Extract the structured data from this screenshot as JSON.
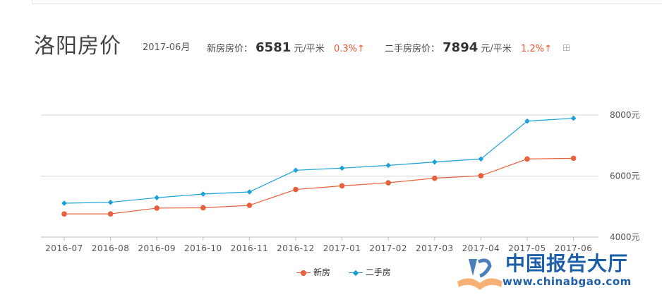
{
  "header": {
    "city_title": "洛阳房价",
    "date": "2017-06月",
    "new_label": "新房房价：",
    "new_price": "6581",
    "new_unit": "元/平米",
    "new_change": "0.3%↑",
    "second_label": "二手房房价：",
    "second_price": "7894",
    "second_unit": "元/平米",
    "second_change": "1.2%↑"
  },
  "legend": {
    "new": "新房",
    "second": "二手房"
  },
  "watermark": {
    "cn": "中国报告大厅",
    "url": "www.chinabgao.com"
  },
  "colors": {
    "new": "#e8603c",
    "second": "#1ba0d8",
    "grid": "#d6d6d6",
    "watermark": "#1e5fa8"
  },
  "chart_data": {
    "type": "line",
    "categories": [
      "2016-07",
      "2016-08",
      "2016-09",
      "2016-10",
      "2016-11",
      "2016-12",
      "2017-01",
      "2017-02",
      "2017-03",
      "2017-04",
      "2017-05",
      "2017-06"
    ],
    "series": [
      {
        "name": "新房",
        "marker": "circle",
        "values": [
          4760,
          4760,
          4950,
          4960,
          5040,
          5560,
          5680,
          5780,
          5930,
          6010,
          6560,
          6581
        ]
      },
      {
        "name": "二手房",
        "marker": "diamond",
        "values": [
          5110,
          5140,
          5290,
          5410,
          5480,
          6190,
          6260,
          6350,
          6460,
          6560,
          7800,
          7894
        ]
      }
    ],
    "yticks": [
      "4000元",
      "6000元",
      "8000元"
    ],
    "ytick_values": [
      4000,
      6000,
      8000
    ],
    "ylim": [
      4000,
      8000
    ],
    "grid": true,
    "legend_position": "bottom"
  }
}
